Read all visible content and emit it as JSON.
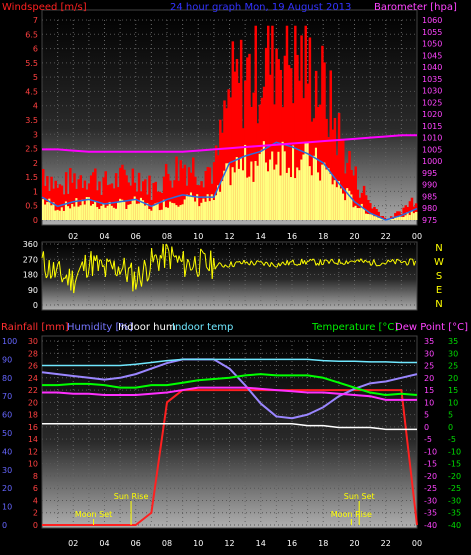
{
  "header": {
    "left": "Windspeed [m/s]",
    "center": "24 hour graph Mon, 19 August 2013",
    "right": "Barometer [hpa]"
  },
  "colors": {
    "wind": "#ff0000",
    "gust_fill": "#ffff80",
    "wind_dark": "#2a6fe0",
    "barometer": "#ff00ff",
    "direction": "#ffff00",
    "rain": "#ff2020",
    "humidity": "#9a86ff",
    "indoor_hum": "#ffffff",
    "indoor_temp": "#70e8ff",
    "temperature": "#00ff00",
    "dew_point": "#ff30ff",
    "border": "#555555",
    "axis_text_blue": "#6666ff",
    "axis_text_green": "#00dd00",
    "axis_text_magenta": "#ff44ff"
  },
  "x_ticks": [
    "02",
    "04",
    "06",
    "08",
    "10",
    "12",
    "14",
    "16",
    "18",
    "20",
    "22",
    "00"
  ],
  "chart_data": [
    {
      "type": "line",
      "title": "24 hour graph Mon, 19 August 2013",
      "ylabel": "Windspeed [m/s]",
      "y2label": "Barometer [hpa]",
      "ylim": [
        0,
        7
      ],
      "y_ticks": [
        "0",
        "0.5",
        "1",
        "1.5",
        "2",
        "2.5",
        "3",
        "3.5",
        "4",
        "4.5",
        "5",
        "5.5",
        "6",
        "6.5",
        "7"
      ],
      "y2lim": [
        975,
        1060
      ],
      "y2_ticks": [
        "975",
        "980",
        "985",
        "990",
        "995",
        "1000",
        "1005",
        "1010",
        "1015",
        "1020",
        "1025",
        "1030",
        "1035",
        "1040",
        "1045",
        "1050",
        "1055",
        "1060"
      ],
      "x_hours": [
        0,
        1,
        2,
        3,
        4,
        5,
        6,
        7,
        8,
        9,
        10,
        11,
        12,
        13,
        14,
        15,
        16,
        17,
        18,
        19,
        20,
        21,
        22,
        23,
        24
      ],
      "series": [
        {
          "name": "Windspeed [m/s]",
          "values": [
            1.0,
            0.6,
            0.8,
            0.9,
            0.7,
            0.8,
            0.9,
            0.6,
            0.9,
            1.1,
            1.0,
            1.0,
            2.5,
            2.8,
            3.0,
            3.4,
            3.2,
            2.9,
            2.5,
            1.6,
            0.8,
            0.3,
            0.0,
            0.2,
            0.5
          ]
        },
        {
          "name": "Barometer [hpa]",
          "values": [
            1005,
            1005,
            1004.5,
            1004,
            1004,
            1004,
            1004,
            1004,
            1004,
            1004,
            1004.5,
            1005,
            1005.5,
            1006,
            1006.5,
            1007,
            1007.5,
            1008,
            1008.5,
            1009,
            1009.5,
            1010,
            1010.5,
            1011,
            1011
          ]
        }
      ]
    },
    {
      "type": "scatter",
      "ylabel": "",
      "ylim": [
        0,
        360
      ],
      "y_ticks": [
        "0",
        "90",
        "180",
        "270",
        "360"
      ],
      "y2_ticks": [
        "N",
        "W",
        "S",
        "E",
        "N"
      ],
      "x_hours": [
        0,
        1,
        2,
        3,
        4,
        5,
        6,
        7,
        8,
        9,
        10,
        11,
        12,
        13,
        14,
        15,
        16,
        17,
        18,
        19,
        20,
        21,
        22,
        23,
        24
      ],
      "series": [
        {
          "name": "Wind direction",
          "values": [
            250,
            180,
            150,
            260,
            200,
            230,
            150,
            250,
            300,
            240,
            250,
            230,
            240,
            250,
            245,
            240,
            250,
            255,
            250,
            255,
            260,
            250,
            250,
            255,
            250
          ]
        }
      ]
    },
    {
      "type": "line",
      "legend": [
        "Rainfall [mm]",
        "Humidity [%]",
        "Indoor hum",
        "Indoor temp",
        "Temperature [°C]",
        "Dew Point [°C]"
      ],
      "y_left1_ticks": [
        "0",
        "10",
        "20",
        "30",
        "40",
        "50",
        "60",
        "70",
        "80",
        "90",
        "100"
      ],
      "y_left2_ticks": [
        "0",
        "2",
        "4",
        "6",
        "8",
        "10",
        "12",
        "14",
        "16",
        "18",
        "20",
        "22",
        "24",
        "26",
        "28",
        "30"
      ],
      "y_right_ticks": [
        "35",
        "30",
        "25",
        "20",
        "15",
        "10",
        "5",
        "0",
        "-5",
        "-10",
        "-15",
        "-20",
        "-25",
        "-30",
        "-35",
        "-40"
      ],
      "ylim_temp": [
        -40,
        35
      ],
      "ylim_humidity": [
        0,
        100
      ],
      "ylim_rain": [
        0,
        30
      ],
      "annotations": [
        "Moon Set",
        "Sun Rise",
        "Sun Set",
        "Moon Rise"
      ],
      "x_hours": [
        0,
        1,
        2,
        3,
        4,
        5,
        6,
        7,
        8,
        9,
        10,
        11,
        12,
        13,
        14,
        15,
        16,
        17,
        18,
        19,
        20,
        21,
        22,
        23,
        24
      ],
      "series": [
        {
          "name": "Rainfall [mm]",
          "values": [
            0,
            0,
            0,
            0,
            0,
            0,
            0,
            2,
            20,
            22,
            22,
            22,
            22,
            22,
            22,
            22,
            22,
            22,
            22,
            22,
            22,
            22,
            22,
            22,
            0
          ]
        },
        {
          "name": "Humidity [%]",
          "values": [
            83,
            82,
            81,
            80,
            79,
            80,
            82,
            85,
            88,
            90,
            90,
            90,
            85,
            76,
            66,
            59,
            58,
            60,
            64,
            70,
            74,
            77,
            78,
            80,
            82
          ]
        },
        {
          "name": "Indoor hum",
          "values": [
            55,
            55,
            55,
            55,
            55,
            55,
            55,
            55,
            55,
            55,
            55,
            55,
            55,
            55,
            55,
            55,
            55,
            54,
            54,
            53,
            53,
            53,
            52,
            52,
            52
          ]
        },
        {
          "name": "Indoor temp",
          "values": [
            26,
            26,
            26,
            26,
            26,
            26,
            26.2,
            26.5,
            26.8,
            27,
            27,
            27,
            27,
            27,
            27,
            27,
            27,
            27,
            26.8,
            26.7,
            26.7,
            26.6,
            26.6,
            26.5,
            26.5
          ]
        },
        {
          "name": "Temperature [°C]",
          "values": [
            17,
            17,
            17.5,
            17.5,
            17,
            16,
            16,
            17,
            17,
            18,
            19,
            19.5,
            20,
            21,
            21.5,
            21,
            21,
            21,
            20,
            18,
            16,
            14,
            13,
            13.5,
            13
          ]
        },
        {
          "name": "Dew Point [°C]",
          "values": [
            14,
            14,
            13.5,
            13.5,
            13,
            13,
            13,
            13.5,
            14,
            15,
            16,
            16,
            16,
            16,
            15.5,
            15,
            14.5,
            14,
            14,
            13.5,
            13,
            12.5,
            11,
            11,
            11
          ]
        }
      ]
    }
  ]
}
